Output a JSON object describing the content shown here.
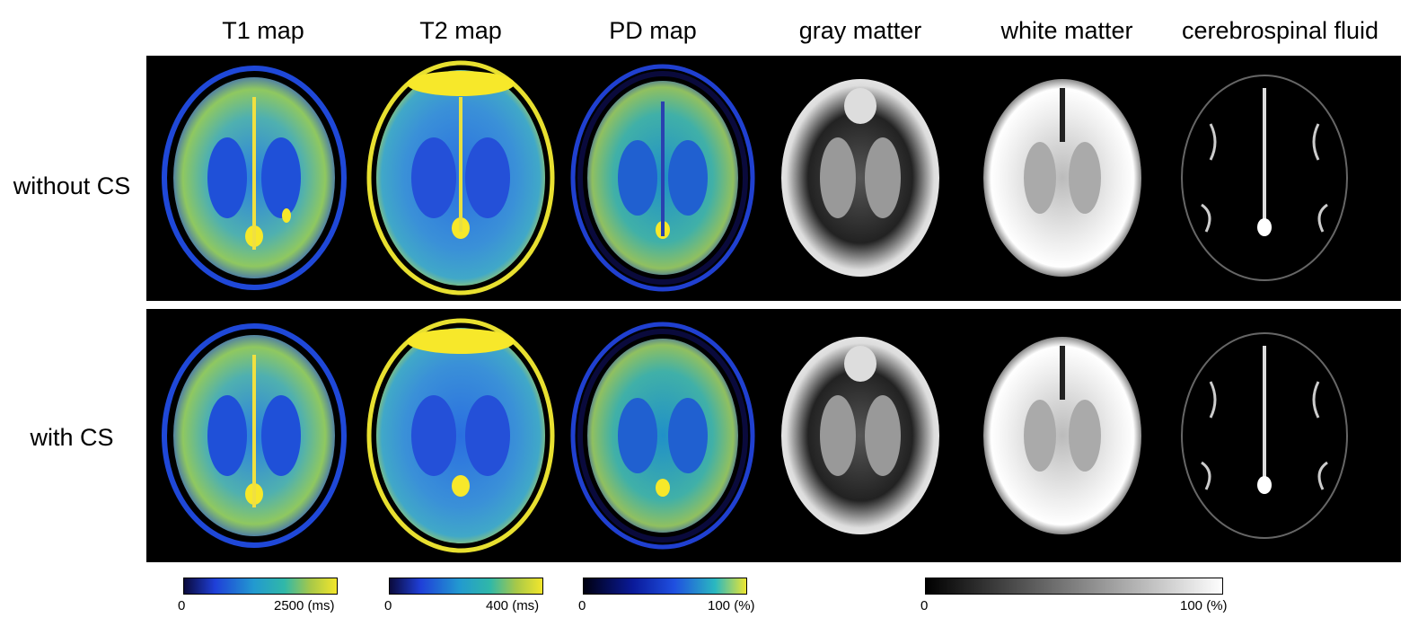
{
  "columns": [
    "T1 map",
    "T2 map",
    "PD map",
    "gray matter",
    "white matter",
    "cerebrospinal fluid"
  ],
  "rows": [
    "without CS",
    "with CS"
  ],
  "colorbars": [
    {
      "min_label": "0",
      "max_label": "2500 (ms)",
      "colormap": "parula"
    },
    {
      "min_label": "0",
      "max_label": "400 (ms)",
      "colormap": "parula"
    },
    {
      "min_label": "0",
      "max_label": "100 (%)",
      "colormap": "parula"
    },
    {
      "min_label": "0",
      "max_label": "100 (%)",
      "colormap": "grayscale"
    }
  ],
  "colors": {
    "panel_background": "#000000",
    "parula_dark": "#0a0a3c",
    "parula_blue": "#1f4fe0",
    "parula_cyan": "#2aa8c9",
    "parula_green": "#6fc36a",
    "parula_yellow": "#f7e82a"
  }
}
